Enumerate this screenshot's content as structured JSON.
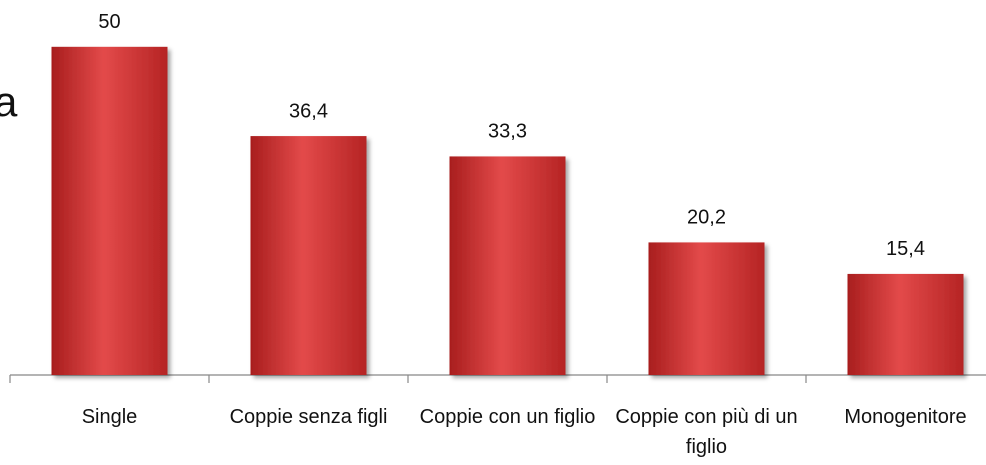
{
  "chart_data": {
    "type": "bar",
    "title": "a",
    "categories": [
      "Single",
      "Coppie senza figli",
      "Coppie con un figlio",
      "Coppie con più di un figlio",
      "Monogenitore"
    ],
    "values": [
      50,
      36.4,
      33.3,
      20.2,
      15.4
    ],
    "value_labels": [
      "50",
      "36,4",
      "33,3",
      "20,2",
      "15,4"
    ],
    "color": "#d63c3c",
    "ylim": [
      0,
      55
    ]
  }
}
